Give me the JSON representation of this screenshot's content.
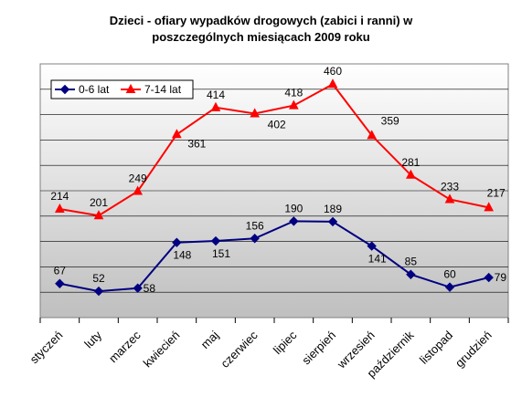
{
  "chart_data": {
    "type": "line",
    "title_lines": [
      "Dzieci - ofiary wypadków drogowych (zabici i ranni) w",
      "poszczególnych miesiącach 2009 roku"
    ],
    "categories": [
      "styczeń",
      "luty",
      "marzec",
      "kwiecień",
      "maj",
      "czerwiec",
      "lipiec",
      "sierpień",
      "wrzesień",
      "październik",
      "listopad",
      "grudzień"
    ],
    "series": [
      {
        "name": "0-6 lat",
        "color": "#000080",
        "marker": "diamond",
        "values": [
          67,
          52,
          58,
          148,
          151,
          156,
          190,
          189,
          141,
          85,
          60,
          79
        ]
      },
      {
        "name": "7-14 lat",
        "color": "#ff0000",
        "marker": "triangle",
        "values": [
          214,
          201,
          249,
          361,
          414,
          402,
          418,
          460,
          359,
          281,
          233,
          217
        ]
      }
    ],
    "ylim": [
      0,
      500
    ],
    "grid": true,
    "legend_position": "top-left",
    "data_labels": true
  }
}
